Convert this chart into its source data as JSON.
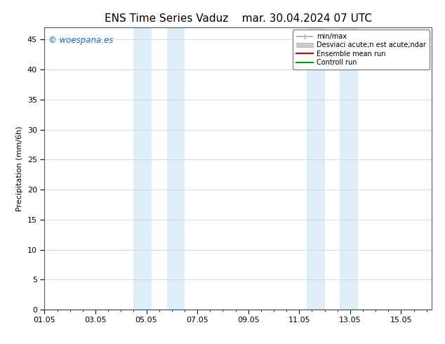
{
  "title_left": "ENS Time Series Vaduz",
  "title_right": "mar. 30.04.2024 07 UTC",
  "ylabel": "Precipitation (mm/6h)",
  "ylim": [
    0,
    47
  ],
  "yticks": [
    0,
    5,
    10,
    15,
    20,
    25,
    30,
    35,
    40,
    45
  ],
  "xlim": [
    0,
    15.2
  ],
  "xtick_labels": [
    "01.05",
    "03.05",
    "05.05",
    "07.05",
    "09.05",
    "11.05",
    "13.05",
    "15.05"
  ],
  "xtick_positions": [
    0,
    2,
    4,
    6,
    8,
    10,
    12,
    14
  ],
  "shaded_regions": [
    [
      3.5,
      4.2
    ],
    [
      4.8,
      5.5
    ],
    [
      10.3,
      11.0
    ],
    [
      11.6,
      12.3
    ]
  ],
  "shaded_color": "#ddeef8",
  "watermark_text": "woespana.es",
  "watermark_color": "#1a6bb5",
  "copyright_symbol": "©",
  "legend_labels": [
    "min/max",
    "Desviaci acute;n est acute;ndar",
    "Ensemble mean run",
    "Controll run"
  ],
  "legend_colors": [
    "#aaaaaa",
    "#cccccc",
    "#cc0000",
    "#009900"
  ],
  "background_color": "#ffffff",
  "grid_color": "#cccccc",
  "title_fontsize": 11,
  "tick_fontsize": 8,
  "ylabel_fontsize": 8
}
